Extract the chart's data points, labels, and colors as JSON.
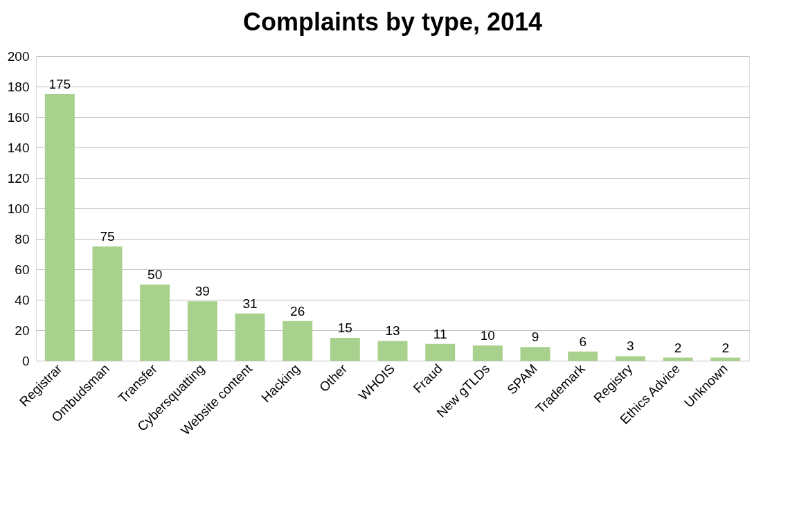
{
  "chart_data": {
    "type": "bar",
    "title": "Complaints by type, 2014",
    "categories": [
      "Registrar",
      "Ombudsman",
      "Transfer",
      "Cybersquatting",
      "Website content",
      "Hacking",
      "Other",
      "WHOIS",
      "Fraud",
      "New gTLDs",
      "SPAM",
      "Trademark",
      "Registry",
      "Ethics Advice",
      "Unknown"
    ],
    "values": [
      175,
      75,
      50,
      39,
      31,
      26,
      15,
      13,
      11,
      10,
      9,
      6,
      3,
      2,
      2
    ],
    "color": "#a9d18e",
    "ylim": [
      0,
      200
    ],
    "yticks": [
      0,
      20,
      40,
      60,
      80,
      100,
      120,
      140,
      160,
      180,
      200
    ],
    "grid": "y",
    "data_labels": true
  }
}
